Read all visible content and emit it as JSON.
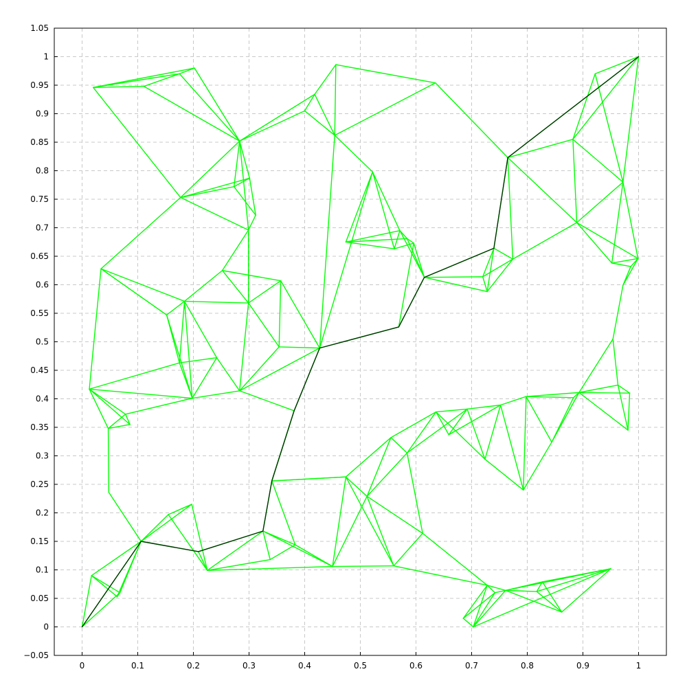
{
  "chart_data": {
    "type": "line",
    "title": "",
    "xlabel": "",
    "ylabel": "",
    "xlim": [
      -0.05,
      1.05
    ],
    "ylim": [
      -0.05,
      1.05
    ],
    "grid": true,
    "colors": {
      "graph": "#00ff00",
      "path": "#003300",
      "grid": "#c8c8c8"
    },
    "x_ticks": [
      {
        "value": 0,
        "label": "0"
      },
      {
        "value": 0.1,
        "label": "0.1"
      },
      {
        "value": 0.2,
        "label": "0.2"
      },
      {
        "value": 0.3,
        "label": "0.3"
      },
      {
        "value": 0.4,
        "label": "0.4"
      },
      {
        "value": 0.5,
        "label": "0.5"
      },
      {
        "value": 0.6,
        "label": "0.6"
      },
      {
        "value": 0.7,
        "label": "0.7"
      },
      {
        "value": 0.8,
        "label": "0.8"
      },
      {
        "value": 0.9,
        "label": "0.9"
      },
      {
        "value": 1,
        "label": "1"
      }
    ],
    "y_ticks": [
      {
        "value": -0.05,
        "label": "−0.05"
      },
      {
        "value": 0,
        "label": "0"
      },
      {
        "value": 0.05,
        "label": "0.05"
      },
      {
        "value": 0.1,
        "label": "0.1"
      },
      {
        "value": 0.15,
        "label": "0.15"
      },
      {
        "value": 0.2,
        "label": "0.2"
      },
      {
        "value": 0.25,
        "label": "0.25"
      },
      {
        "value": 0.3,
        "label": "0.3"
      },
      {
        "value": 0.35,
        "label": "0.35"
      },
      {
        "value": 0.4,
        "label": "0.4"
      },
      {
        "value": 0.45,
        "label": "0.45"
      },
      {
        "value": 0.5,
        "label": "0.5"
      },
      {
        "value": 0.55,
        "label": "0.55"
      },
      {
        "value": 0.6,
        "label": "0.6"
      },
      {
        "value": 0.65,
        "label": "0.65"
      },
      {
        "value": 0.7,
        "label": "0.7"
      },
      {
        "value": 0.75,
        "label": "0.75"
      },
      {
        "value": 0.8,
        "label": "0.8"
      },
      {
        "value": 0.85,
        "label": "0.85"
      },
      {
        "value": 0.9,
        "label": "0.9"
      },
      {
        "value": 0.95,
        "label": "0.95"
      },
      {
        "value": 1,
        "label": "1"
      },
      {
        "value": 1.05,
        "label": "1.05"
      }
    ],
    "nodes": [
      [
        0,
        0
      ],
      [
        0.017,
        0.09
      ],
      [
        0.068,
        0.06
      ],
      [
        0.063,
        0.053
      ],
      [
        0.106,
        0.15
      ],
      [
        0.048,
        0.236
      ],
      [
        0.047,
        0.348
      ],
      [
        0.086,
        0.355
      ],
      [
        0.078,
        0.373
      ],
      [
        0.013,
        0.417
      ],
      [
        0.197,
        0.215
      ],
      [
        0.155,
        0.197
      ],
      [
        0.225,
        0.099
      ],
      [
        0.209,
        0.132
      ],
      [
        0.325,
        0.168
      ],
      [
        0.338,
        0.118
      ],
      [
        0.383,
        0.144
      ],
      [
        0.45,
        0.106
      ],
      [
        0.341,
        0.256
      ],
      [
        0.381,
        0.379
      ],
      [
        0.474,
        0.263
      ],
      [
        0.512,
        0.229
      ],
      [
        0.56,
        0.107
      ],
      [
        0.612,
        0.164
      ],
      [
        0.584,
        0.305
      ],
      [
        0.555,
        0.332
      ],
      [
        0.636,
        0.377
      ],
      [
        0.659,
        0.337
      ],
      [
        0.692,
        0.382
      ],
      [
        0.724,
        0.294
      ],
      [
        0.752,
        0.389
      ],
      [
        0.793,
        0.24
      ],
      [
        0.798,
        0.404
      ],
      [
        0.844,
        0.324
      ],
      [
        0.883,
        0.402
      ],
      [
        0.893,
        0.411
      ],
      [
        0.981,
        0.345
      ],
      [
        0.984,
        0.41
      ],
      [
        0.963,
        0.424
      ],
      [
        0.954,
        0.505
      ],
      [
        0.972,
        0.599
      ],
      [
        0.999,
        0.646
      ],
      [
        0.986,
        0.632
      ],
      [
        0.952,
        0.638
      ],
      [
        0.972,
        0.78
      ],
      [
        0.882,
        0.855
      ],
      [
        0.889,
        0.709
      ],
      [
        0.922,
        0.97
      ],
      [
        1.0,
        1.0
      ],
      [
        0.765,
        0.823
      ],
      [
        0.774,
        0.645
      ],
      [
        0.74,
        0.664
      ],
      [
        0.72,
        0.614
      ],
      [
        0.728,
        0.588
      ],
      [
        0.615,
        0.613
      ],
      [
        0.596,
        0.673
      ],
      [
        0.584,
        0.681
      ],
      [
        0.571,
        0.695
      ],
      [
        0.561,
        0.663
      ],
      [
        0.569,
        0.526
      ],
      [
        0.474,
        0.675
      ],
      [
        0.522,
        0.798
      ],
      [
        0.427,
        0.489
      ],
      [
        0.454,
        0.862
      ],
      [
        0.635,
        0.954
      ],
      [
        0.456,
        0.986
      ],
      [
        0.418,
        0.934
      ],
      [
        0.4,
        0.905
      ],
      [
        0.283,
        0.852
      ],
      [
        0.301,
        0.787
      ],
      [
        0.273,
        0.772
      ],
      [
        0.312,
        0.722
      ],
      [
        0.299,
        0.696
      ],
      [
        0.177,
        0.753
      ],
      [
        0.02,
        0.946
      ],
      [
        0.111,
        0.948
      ],
      [
        0.175,
        0.97
      ],
      [
        0.202,
        0.98
      ],
      [
        0.034,
        0.628
      ],
      [
        0.152,
        0.547
      ],
      [
        0.184,
        0.571
      ],
      [
        0.252,
        0.625
      ],
      [
        0.299,
        0.568
      ],
      [
        0.357,
        0.607
      ],
      [
        0.354,
        0.491
      ],
      [
        0.242,
        0.472
      ],
      [
        0.175,
        0.463
      ],
      [
        0.283,
        0.414
      ],
      [
        0.198,
        0.401
      ],
      [
        0.703,
        0.0
      ],
      [
        0.728,
        0.073
      ],
      [
        0.685,
        0.015
      ],
      [
        0.742,
        0.06
      ],
      [
        0.761,
        0.064
      ],
      [
        0.827,
        0.079
      ],
      [
        0.817,
        0.062
      ],
      [
        0.862,
        0.026
      ],
      [
        0.95,
        0.102
      ]
    ],
    "edges": [
      [
        0,
        1
      ],
      [
        1,
        2
      ],
      [
        1,
        3
      ],
      [
        2,
        3
      ],
      [
        0,
        2
      ],
      [
        0,
        4
      ],
      [
        2,
        4
      ],
      [
        3,
        4
      ],
      [
        1,
        4
      ],
      [
        4,
        5
      ],
      [
        5,
        6
      ],
      [
        6,
        7
      ],
      [
        6,
        8
      ],
      [
        7,
        8
      ],
      [
        6,
        9
      ],
      [
        8,
        9
      ],
      [
        9,
        7
      ],
      [
        4,
        11
      ],
      [
        4,
        10
      ],
      [
        11,
        10
      ],
      [
        11,
        12
      ],
      [
        10,
        12
      ],
      [
        4,
        13
      ],
      [
        13,
        12
      ],
      [
        13,
        14
      ],
      [
        12,
        14
      ],
      [
        12,
        15
      ],
      [
        14,
        15
      ],
      [
        14,
        16
      ],
      [
        15,
        16
      ],
      [
        16,
        17
      ],
      [
        12,
        17
      ],
      [
        14,
        17
      ],
      [
        14,
        18
      ],
      [
        18,
        16
      ],
      [
        18,
        19
      ],
      [
        18,
        20
      ],
      [
        20,
        21
      ],
      [
        21,
        17
      ],
      [
        17,
        22
      ],
      [
        21,
        22
      ],
      [
        21,
        23
      ],
      [
        22,
        23
      ],
      [
        21,
        24
      ],
      [
        24,
        23
      ],
      [
        20,
        25
      ],
      [
        25,
        24
      ],
      [
        25,
        26
      ],
      [
        26,
        24
      ],
      [
        26,
        27
      ],
      [
        27,
        28
      ],
      [
        28,
        29
      ],
      [
        26,
        29
      ],
      [
        24,
        28
      ],
      [
        28,
        30
      ],
      [
        27,
        30
      ],
      [
        30,
        29
      ],
      [
        30,
        31
      ],
      [
        29,
        31
      ],
      [
        30,
        32
      ],
      [
        32,
        31
      ],
      [
        32,
        33
      ],
      [
        31,
        33
      ],
      [
        32,
        34
      ],
      [
        33,
        34
      ],
      [
        33,
        35
      ],
      [
        34,
        35
      ],
      [
        32,
        35
      ],
      [
        35,
        36
      ],
      [
        35,
        37
      ],
      [
        36,
        37
      ],
      [
        37,
        38
      ],
      [
        38,
        36
      ],
      [
        35,
        38
      ],
      [
        35,
        39
      ],
      [
        39,
        38
      ],
      [
        39,
        40
      ],
      [
        40,
        41
      ],
      [
        40,
        42
      ],
      [
        41,
        42
      ],
      [
        41,
        43
      ],
      [
        42,
        43
      ],
      [
        43,
        44
      ],
      [
        41,
        44
      ],
      [
        44,
        45
      ],
      [
        45,
        46
      ],
      [
        44,
        46
      ],
      [
        46,
        43
      ],
      [
        46,
        41
      ],
      [
        45,
        47
      ],
      [
        47,
        48
      ],
      [
        45,
        48
      ],
      [
        48,
        44
      ],
      [
        47,
        44
      ],
      [
        48,
        49
      ],
      [
        49,
        45
      ],
      [
        49,
        46
      ],
      [
        49,
        50
      ],
      [
        49,
        51
      ],
      [
        50,
        51
      ],
      [
        50,
        46
      ],
      [
        51,
        52
      ],
      [
        52,
        50
      ],
      [
        52,
        53
      ],
      [
        53,
        50
      ],
      [
        51,
        53
      ],
      [
        52,
        54
      ],
      [
        53,
        54
      ],
      [
        51,
        54
      ],
      [
        54,
        55
      ],
      [
        54,
        56
      ],
      [
        54,
        57
      ],
      [
        55,
        56
      ],
      [
        56,
        57
      ],
      [
        55,
        58
      ],
      [
        55,
        59
      ],
      [
        54,
        59
      ],
      [
        57,
        58
      ],
      [
        57,
        60
      ],
      [
        58,
        60
      ],
      [
        56,
        60
      ],
      [
        57,
        61
      ],
      [
        58,
        61
      ],
      [
        61,
        60
      ],
      [
        61,
        62
      ],
      [
        59,
        62
      ],
      [
        61,
        63
      ],
      [
        63,
        62
      ],
      [
        63,
        64
      ],
      [
        64,
        49
      ],
      [
        64,
        65
      ],
      [
        65,
        63
      ],
      [
        65,
        66
      ],
      [
        66,
        63
      ],
      [
        66,
        67
      ],
      [
        67,
        63
      ],
      [
        67,
        68
      ],
      [
        66,
        68
      ],
      [
        68,
        69
      ],
      [
        68,
        70
      ],
      [
        69,
        70
      ],
      [
        69,
        71
      ],
      [
        70,
        71
      ],
      [
        71,
        72
      ],
      [
        68,
        72
      ],
      [
        72,
        73
      ],
      [
        73,
        70
      ],
      [
        73,
        69
      ],
      [
        68,
        73
      ],
      [
        73,
        74
      ],
      [
        74,
        75
      ],
      [
        75,
        76
      ],
      [
        76,
        77
      ],
      [
        74,
        76
      ],
      [
        74,
        77
      ],
      [
        77,
        68
      ],
      [
        76,
        68
      ],
      [
        75,
        68
      ],
      [
        78,
        73
      ],
      [
        78,
        79
      ],
      [
        78,
        80
      ],
      [
        79,
        80
      ],
      [
        80,
        81
      ],
      [
        81,
        82
      ],
      [
        80,
        82
      ],
      [
        81,
        83
      ],
      [
        82,
        83
      ],
      [
        82,
        84
      ],
      [
        83,
        84
      ],
      [
        83,
        62
      ],
      [
        84,
        62
      ],
      [
        84,
        87
      ],
      [
        87,
        82
      ],
      [
        87,
        62
      ],
      [
        87,
        19
      ],
      [
        19,
        62
      ],
      [
        19,
        18
      ],
      [
        85,
        86
      ],
      [
        85,
        80
      ],
      [
        85,
        87
      ],
      [
        86,
        88
      ],
      [
        85,
        88
      ],
      [
        88,
        87
      ],
      [
        86,
        9
      ],
      [
        80,
        86
      ],
      [
        79,
        86
      ],
      [
        79,
        88
      ],
      [
        80,
        88
      ],
      [
        72,
        82
      ],
      [
        72,
        81
      ],
      [
        78,
        9
      ],
      [
        9,
        88
      ],
      [
        8,
        88
      ],
      [
        18,
        20
      ],
      [
        22,
        90
      ],
      [
        23,
        90
      ],
      [
        90,
        91
      ],
      [
        89,
        91
      ],
      [
        90,
        89
      ],
      [
        89,
        92
      ],
      [
        90,
        92
      ],
      [
        92,
        93
      ],
      [
        89,
        93
      ],
      [
        90,
        93
      ],
      [
        93,
        94
      ],
      [
        93,
        95
      ],
      [
        94,
        95
      ],
      [
        95,
        96
      ],
      [
        94,
        96
      ],
      [
        93,
        96
      ],
      [
        94,
        97
      ],
      [
        96,
        97
      ],
      [
        95,
        97
      ],
      [
        91,
        92
      ],
      [
        89,
        97
      ],
      [
        93,
        97
      ],
      [
        20,
        22
      ],
      [
        20,
        17
      ],
      [
        26,
        28
      ],
      [
        25,
        21
      ]
    ],
    "path": [
      0,
      4,
      13,
      14,
      18,
      19,
      62,
      59,
      54,
      51,
      49,
      48
    ]
  }
}
